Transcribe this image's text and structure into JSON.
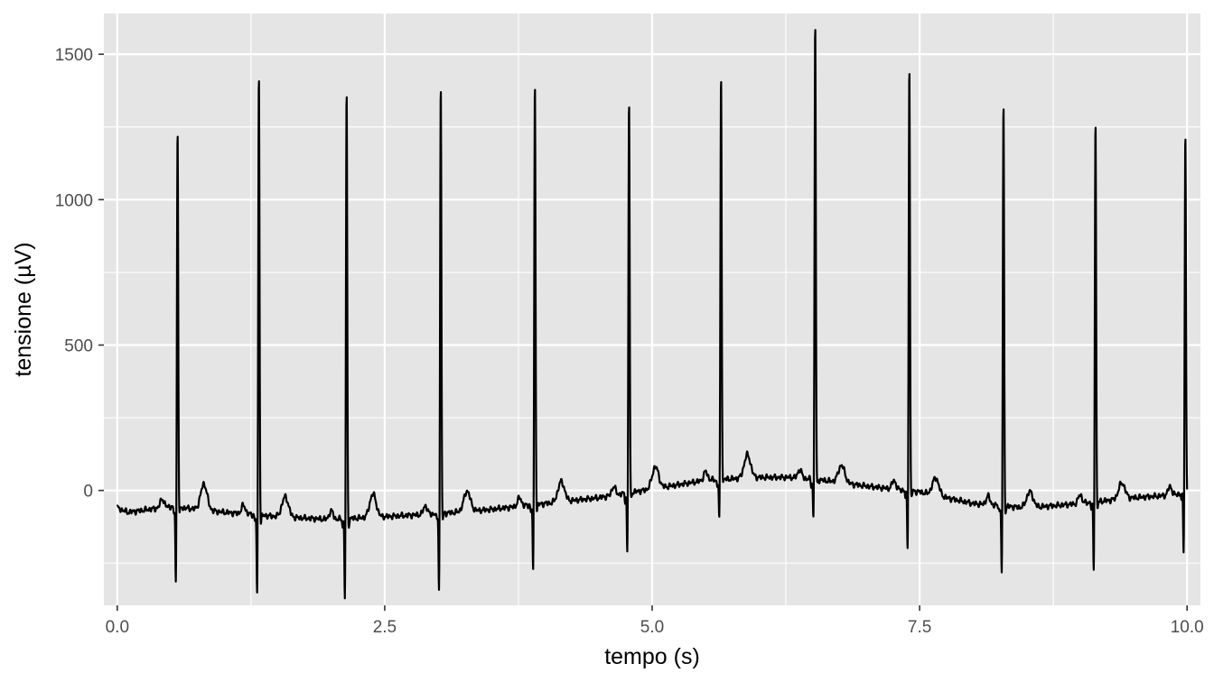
{
  "chart_data": {
    "type": "line",
    "title": "",
    "xlabel": "tempo (s)",
    "ylabel": "tensione (µV)",
    "xlim": [
      -0.125,
      10.125
    ],
    "ylim": [
      -395,
      1640
    ],
    "x_ticks": [
      {
        "value": 0.0,
        "label": "0.0"
      },
      {
        "value": 2.5,
        "label": "2.5"
      },
      {
        "value": 5.0,
        "label": "5.0"
      },
      {
        "value": 7.5,
        "label": "7.5"
      },
      {
        "value": 10.0,
        "label": "10.0"
      }
    ],
    "y_ticks": [
      {
        "value": 0,
        "label": "0"
      },
      {
        "value": 500,
        "label": "500"
      },
      {
        "value": 1000,
        "label": "1000"
      },
      {
        "value": 1500,
        "label": "1500"
      }
    ],
    "x_minor": [
      1.25,
      3.75,
      6.25,
      8.75
    ],
    "y_minor": [
      -250,
      250,
      750,
      1250
    ],
    "grid": true,
    "legend": "none",
    "colors": {
      "panel": "#e5e5e5",
      "grid": "#ffffff",
      "line": "#000000"
    },
    "baseline_knots": [
      [
        0.0,
        -60
      ],
      [
        0.1,
        -75
      ],
      [
        0.5,
        -55
      ],
      [
        1.0,
        -75
      ],
      [
        1.5,
        -90
      ],
      [
        2.0,
        -100
      ],
      [
        2.5,
        -90
      ],
      [
        3.0,
        -80
      ],
      [
        3.5,
        -65
      ],
      [
        4.0,
        -45
      ],
      [
        4.5,
        -25
      ],
      [
        5.0,
        5
      ],
      [
        5.5,
        35
      ],
      [
        6.0,
        45
      ],
      [
        6.3,
        45
      ],
      [
        6.6,
        35
      ],
      [
        7.0,
        15
      ],
      [
        7.5,
        -5
      ],
      [
        8.0,
        -45
      ],
      [
        8.5,
        -60
      ],
      [
        9.0,
        -45
      ],
      [
        9.5,
        -25
      ],
      [
        9.9,
        -15
      ],
      [
        10.0,
        0
      ]
    ],
    "beats": [
      {
        "t": 0.56,
        "r": 1295,
        "s": -285,
        "q": -25,
        "p": 30,
        "tw": 90
      },
      {
        "t": 1.32,
        "r": 1520,
        "s": -300,
        "q": -25,
        "p": 30,
        "tw": 70
      },
      {
        "t": 2.14,
        "r": 1470,
        "s": -295,
        "q": -25,
        "p": 30,
        "tw": 80
      },
      {
        "t": 3.02,
        "r": 1465,
        "s": -285,
        "q": -25,
        "p": 30,
        "tw": 70
      },
      {
        "t": 3.9,
        "r": 1455,
        "s": -255,
        "q": -25,
        "p": 30,
        "tw": 70
      },
      {
        "t": 4.78,
        "r": 1350,
        "s": -225,
        "q": -25,
        "p": 30,
        "tw": 75
      },
      {
        "t": 5.64,
        "r": 1385,
        "s": -160,
        "q": -25,
        "p": 30,
        "tw": 80
      },
      {
        "t": 6.52,
        "r": 1575,
        "s": -160,
        "q": -25,
        "p": 30,
        "tw": 60
      },
      {
        "t": 7.4,
        "r": 1460,
        "s": -220,
        "q": -25,
        "p": 30,
        "tw": 60
      },
      {
        "t": 8.28,
        "r": 1375,
        "s": -255,
        "q": -25,
        "p": 30,
        "tw": 55
      },
      {
        "t": 9.14,
        "r": 1315,
        "s": -260,
        "q": -25,
        "p": 30,
        "tw": 55
      },
      {
        "t": 9.98,
        "r": 1230,
        "s": -225,
        "q": -25,
        "p": 30,
        "tw": 0
      }
    ],
    "sample_rate_hz": 400
  }
}
